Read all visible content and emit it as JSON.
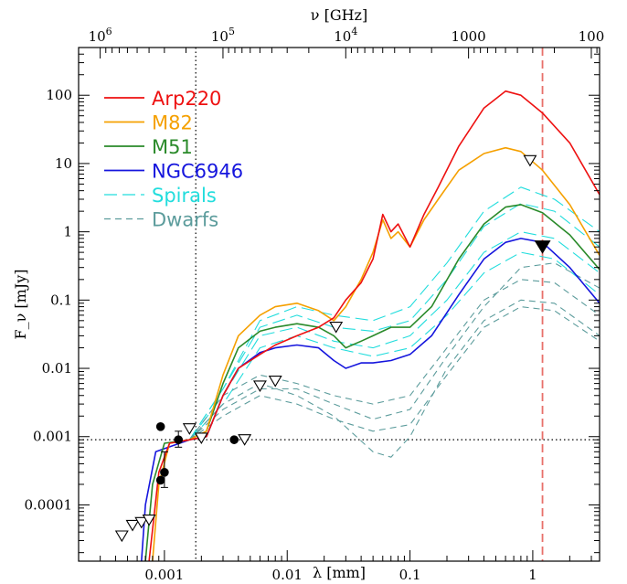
{
  "chart_data": {
    "type": "line",
    "xlabel": "λ [mm]",
    "ylabel": "F_ν [mJy]",
    "top_xlabel": "ν [GHz]",
    "xscale": "log",
    "yscale": "log",
    "xlim": [
      0.0002,
      3.5
    ],
    "ylim": [
      1.5e-05,
      500
    ],
    "x_ticks": [
      {
        "v": 0.001,
        "label": "0.001"
      },
      {
        "v": 0.01,
        "label": "0.01"
      },
      {
        "v": 0.1,
        "label": "0.1"
      },
      {
        "v": 1,
        "label": "1"
      }
    ],
    "y_ticks": [
      {
        "v": 0.0001,
        "label": "0.0001"
      },
      {
        "v": 0.001,
        "label": "0.001"
      },
      {
        "v": 0.01,
        "label": "0.01"
      },
      {
        "v": 0.1,
        "label": "0.1"
      },
      {
        "v": 1,
        "label": "1"
      },
      {
        "v": 10,
        "label": "10"
      },
      {
        "v": 100,
        "label": "100"
      }
    ],
    "top_ticks": [
      {
        "ghz": 1000000,
        "base": "10",
        "exp": "6"
      },
      {
        "ghz": 100000,
        "base": "10",
        "exp": "5"
      },
      {
        "ghz": 10000,
        "base": "10",
        "exp": "4"
      },
      {
        "ghz": 1000,
        "label": "1000"
      },
      {
        "ghz": 100,
        "label": "100"
      }
    ],
    "reference_lines": [
      {
        "orientation": "vertical",
        "x": 0.0018,
        "style": "dotted",
        "color": "#000000"
      },
      {
        "orientation": "horizontal",
        "y": 0.0009,
        "style": "dotted",
        "color": "#000000"
      },
      {
        "orientation": "vertical",
        "x": 1.2,
        "style": "dashed",
        "color": "#e8706a"
      }
    ],
    "series": [
      {
        "name": "Arp220",
        "color": "#ee1111",
        "style": "solid",
        "points": [
          [
            0.00075,
            1.5e-05
          ],
          [
            0.0009,
            0.0003
          ],
          [
            0.0011,
            0.0008
          ],
          [
            0.0016,
            0.0009
          ],
          [
            0.0022,
            0.001
          ],
          [
            0.003,
            0.004
          ],
          [
            0.004,
            0.01
          ],
          [
            0.006,
            0.016
          ],
          [
            0.008,
            0.022
          ],
          [
            0.012,
            0.03
          ],
          [
            0.018,
            0.04
          ],
          [
            0.024,
            0.055
          ],
          [
            0.03,
            0.1
          ],
          [
            0.04,
            0.18
          ],
          [
            0.05,
            0.4
          ],
          [
            0.06,
            1.8
          ],
          [
            0.07,
            1.0
          ],
          [
            0.08,
            1.3
          ],
          [
            0.1,
            0.6
          ],
          [
            0.13,
            1.8
          ],
          [
            0.17,
            4.5
          ],
          [
            0.25,
            18
          ],
          [
            0.4,
            65
          ],
          [
            0.6,
            115
          ],
          [
            0.8,
            100
          ],
          [
            1.2,
            55
          ],
          [
            2,
            20
          ],
          [
            3.5,
            3.5
          ]
        ]
      },
      {
        "name": "M82",
        "color": "#f5a000",
        "style": "solid",
        "points": [
          [
            0.0008,
            1.5e-05
          ],
          [
            0.0009,
            0.0002
          ],
          [
            0.0011,
            0.0008
          ],
          [
            0.0016,
            0.0009
          ],
          [
            0.0022,
            0.0012
          ],
          [
            0.003,
            0.008
          ],
          [
            0.004,
            0.03
          ],
          [
            0.006,
            0.06
          ],
          [
            0.008,
            0.08
          ],
          [
            0.012,
            0.09
          ],
          [
            0.018,
            0.07
          ],
          [
            0.024,
            0.05
          ],
          [
            0.03,
            0.08
          ],
          [
            0.04,
            0.2
          ],
          [
            0.05,
            0.5
          ],
          [
            0.06,
            1.5
          ],
          [
            0.07,
            0.8
          ],
          [
            0.08,
            1.0
          ],
          [
            0.1,
            0.6
          ],
          [
            0.13,
            1.5
          ],
          [
            0.17,
            3
          ],
          [
            0.25,
            8
          ],
          [
            0.4,
            14
          ],
          [
            0.6,
            17
          ],
          [
            0.8,
            15
          ],
          [
            1.2,
            8
          ],
          [
            2,
            2.5
          ],
          [
            3.5,
            0.45
          ]
        ]
      },
      {
        "name": "M51",
        "color": "#2a8a2a",
        "style": "solid",
        "points": [
          [
            0.0007,
            1.5e-05
          ],
          [
            0.0008,
            0.0002
          ],
          [
            0.001,
            0.0008
          ],
          [
            0.0016,
            0.0009
          ],
          [
            0.0022,
            0.0012
          ],
          [
            0.003,
            0.006
          ],
          [
            0.004,
            0.02
          ],
          [
            0.006,
            0.035
          ],
          [
            0.008,
            0.04
          ],
          [
            0.012,
            0.045
          ],
          [
            0.018,
            0.04
          ],
          [
            0.024,
            0.03
          ],
          [
            0.03,
            0.02
          ],
          [
            0.04,
            0.025
          ],
          [
            0.05,
            0.03
          ],
          [
            0.07,
            0.04
          ],
          [
            0.1,
            0.04
          ],
          [
            0.15,
            0.08
          ],
          [
            0.25,
            0.4
          ],
          [
            0.4,
            1.3
          ],
          [
            0.6,
            2.3
          ],
          [
            0.8,
            2.5
          ],
          [
            1.2,
            1.9
          ],
          [
            2,
            0.9
          ],
          [
            3.5,
            0.28
          ]
        ]
      },
      {
        "name": "NGC6946",
        "color": "#1515dd",
        "style": "solid",
        "points": [
          [
            0.00065,
            1.5e-05
          ],
          [
            0.0007,
            0.0001
          ],
          [
            0.00085,
            0.0006
          ],
          [
            0.0016,
            0.0009
          ],
          [
            0.0022,
            0.001
          ],
          [
            0.003,
            0.004
          ],
          [
            0.004,
            0.01
          ],
          [
            0.006,
            0.017
          ],
          [
            0.008,
            0.02
          ],
          [
            0.012,
            0.022
          ],
          [
            0.018,
            0.02
          ],
          [
            0.024,
            0.013
          ],
          [
            0.03,
            0.01
          ],
          [
            0.04,
            0.012
          ],
          [
            0.05,
            0.012
          ],
          [
            0.07,
            0.013
          ],
          [
            0.1,
            0.016
          ],
          [
            0.15,
            0.03
          ],
          [
            0.25,
            0.12
          ],
          [
            0.4,
            0.4
          ],
          [
            0.6,
            0.7
          ],
          [
            0.8,
            0.8
          ],
          [
            1.2,
            0.7
          ],
          [
            2,
            0.3
          ],
          [
            3.5,
            0.09
          ]
        ]
      },
      {
        "name": "Spirals",
        "color": "#22dddd",
        "style": "long-dash",
        "points": [
          [
            0.0016,
            0.0009
          ],
          [
            0.003,
            0.005
          ],
          [
            0.006,
            0.04
          ],
          [
            0.012,
            0.06
          ],
          [
            0.024,
            0.04
          ],
          [
            0.05,
            0.035
          ],
          [
            0.1,
            0.05
          ],
          [
            0.2,
            0.2
          ],
          [
            0.4,
            1.2
          ],
          [
            0.8,
            2.6
          ],
          [
            1.5,
            2.0
          ],
          [
            3.5,
            0.6
          ]
        ]
      },
      {
        "name": "Spirals",
        "color": "#22dddd",
        "style": "long-dash",
        "points": [
          [
            0.0016,
            0.0009
          ],
          [
            0.003,
            0.004
          ],
          [
            0.006,
            0.03
          ],
          [
            0.012,
            0.04
          ],
          [
            0.024,
            0.025
          ],
          [
            0.05,
            0.02
          ],
          [
            0.1,
            0.03
          ],
          [
            0.2,
            0.1
          ],
          [
            0.4,
            0.5
          ],
          [
            0.8,
            1.0
          ],
          [
            1.5,
            0.8
          ],
          [
            3.5,
            0.25
          ]
        ]
      },
      {
        "name": "Spirals",
        "color": "#22dddd",
        "style": "long-dash",
        "points": [
          [
            0.0016,
            0.0009
          ],
          [
            0.003,
            0.005
          ],
          [
            0.006,
            0.05
          ],
          [
            0.012,
            0.08
          ],
          [
            0.024,
            0.06
          ],
          [
            0.05,
            0.05
          ],
          [
            0.1,
            0.08
          ],
          [
            0.2,
            0.35
          ],
          [
            0.4,
            2.0
          ],
          [
            0.8,
            4.5
          ],
          [
            1.5,
            3.0
          ],
          [
            3.5,
            1.0
          ]
        ]
      },
      {
        "name": "Spirals",
        "color": "#22dddd",
        "style": "long-dash",
        "points": [
          [
            0.0016,
            0.0009
          ],
          [
            0.003,
            0.003
          ],
          [
            0.006,
            0.02
          ],
          [
            0.012,
            0.03
          ],
          [
            0.024,
            0.02
          ],
          [
            0.05,
            0.015
          ],
          [
            0.1,
            0.02
          ],
          [
            0.2,
            0.06
          ],
          [
            0.4,
            0.25
          ],
          [
            0.8,
            0.5
          ],
          [
            1.5,
            0.4
          ],
          [
            3.5,
            0.12
          ]
        ]
      },
      {
        "name": "Dwarfs",
        "color": "#5c9c9c",
        "style": "dash",
        "points": [
          [
            0.0016,
            0.0009
          ],
          [
            0.003,
            0.003
          ],
          [
            0.006,
            0.006
          ],
          [
            0.012,
            0.004
          ],
          [
            0.024,
            0.002
          ],
          [
            0.05,
            0.0006
          ],
          [
            0.07,
            0.0005
          ],
          [
            0.1,
            0.001
          ],
          [
            0.2,
            0.01
          ],
          [
            0.4,
            0.05
          ],
          [
            0.8,
            0.1
          ],
          [
            1.5,
            0.09
          ],
          [
            3.5,
            0.03
          ]
        ]
      },
      {
        "name": "Dwarfs",
        "color": "#5c9c9c",
        "style": "dash",
        "points": [
          [
            0.0016,
            0.0009
          ],
          [
            0.003,
            0.004
          ],
          [
            0.006,
            0.008
          ],
          [
            0.012,
            0.006
          ],
          [
            0.024,
            0.004
          ],
          [
            0.05,
            0.003
          ],
          [
            0.1,
            0.004
          ],
          [
            0.2,
            0.02
          ],
          [
            0.4,
            0.1
          ],
          [
            0.8,
            0.2
          ],
          [
            1.5,
            0.18
          ],
          [
            3.5,
            0.06
          ]
        ]
      },
      {
        "name": "Dwarfs",
        "color": "#5c9c9c",
        "style": "dash",
        "points": [
          [
            0.0016,
            0.0009
          ],
          [
            0.003,
            0.002
          ],
          [
            0.006,
            0.004
          ],
          [
            0.012,
            0.003
          ],
          [
            0.024,
            0.0018
          ],
          [
            0.05,
            0.0012
          ],
          [
            0.1,
            0.0015
          ],
          [
            0.2,
            0.008
          ],
          [
            0.4,
            0.04
          ],
          [
            0.8,
            0.08
          ],
          [
            1.5,
            0.07
          ],
          [
            3.5,
            0.025
          ]
        ]
      },
      {
        "name": "Dwarfs",
        "color": "#5c9c9c",
        "style": "dash",
        "points": [
          [
            0.0016,
            0.0009
          ],
          [
            0.003,
            0.0025
          ],
          [
            0.006,
            0.005
          ],
          [
            0.012,
            0.005
          ],
          [
            0.024,
            0.003
          ],
          [
            0.05,
            0.0018
          ],
          [
            0.1,
            0.0025
          ],
          [
            0.2,
            0.015
          ],
          [
            0.4,
            0.08
          ],
          [
            0.8,
            0.3
          ],
          [
            1.5,
            0.35
          ],
          [
            3.5,
            0.15
          ]
        ]
      }
    ],
    "upper_limits": [
      [
        0.00045,
        3.5e-05
      ],
      [
        0.00055,
        5e-05
      ],
      [
        0.00065,
        5.5e-05
      ],
      [
        0.00075,
        6e-05
      ],
      [
        0.0016,
        0.0013
      ],
      [
        0.002,
        0.00095
      ],
      [
        0.0045,
        0.0009
      ],
      [
        0.006,
        0.0055
      ],
      [
        0.008,
        0.0065
      ],
      [
        0.025,
        0.04
      ],
      [
        0.95,
        11
      ]
    ],
    "upper_limits_filled": [
      [
        1.2,
        0.6
      ]
    ],
    "detections": [
      {
        "x": 0.00093,
        "y": 0.0014
      },
      {
        "x": 0.0013,
        "y": 0.0009,
        "err": [
          0.0007,
          0.0012
        ]
      },
      {
        "x": 0.00093,
        "y": 0.00023
      },
      {
        "x": 0.001,
        "y": 0.0003,
        "err": [
          0.00018,
          0.0006
        ]
      },
      {
        "x": 0.0037,
        "y": 0.0009
      }
    ]
  }
}
